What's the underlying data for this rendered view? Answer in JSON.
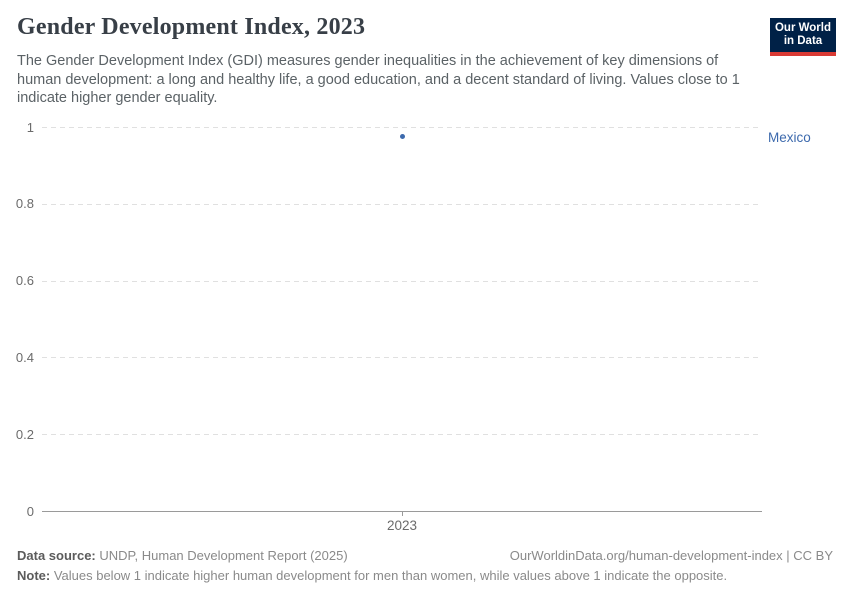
{
  "header": {
    "title": "Gender Development Index, 2023",
    "subtitle": "The Gender Development Index (GDI) measures gender inequalities in the achievement of key dimensions of human development: a long and healthy life, a good education, and a decent standard of living. Values close to 1 indicate higher gender equality.",
    "logo": {
      "line1": "Our World",
      "line2": "in Data",
      "bg_color": "#002147",
      "accent_color": "#d93a34"
    }
  },
  "chart_data": {
    "type": "scatter",
    "title": "Gender Development Index, 2023",
    "x": [
      2023
    ],
    "x_tick_labels": [
      "2023"
    ],
    "series": [
      {
        "name": "Mexico",
        "values": [
          0.975
        ],
        "color": "#3d6aad"
      }
    ],
    "ytick_values": [
      0,
      0.2,
      0.4,
      0.6,
      0.8,
      1
    ],
    "ytick_labels": [
      "0",
      "0.2",
      "0.4",
      "0.6",
      "0.8",
      "1"
    ],
    "ylim": [
      0,
      1
    ],
    "xlabel": "",
    "ylabel": "",
    "grid": "horizontal-dashed",
    "legend": "entity-label-right",
    "grid_color": "#e0e0e0",
    "axis_color": "#9a9a9a"
  },
  "footer": {
    "data_source_label": "Data source:",
    "data_source_text": " UNDP, Human Development Report (2025)",
    "link_text": "OurWorldinData.org/human-development-index | CC BY",
    "note_label": "Note:",
    "note_text": " Values below 1 indicate higher human development for men than women, while values above 1 indicate the opposite."
  }
}
